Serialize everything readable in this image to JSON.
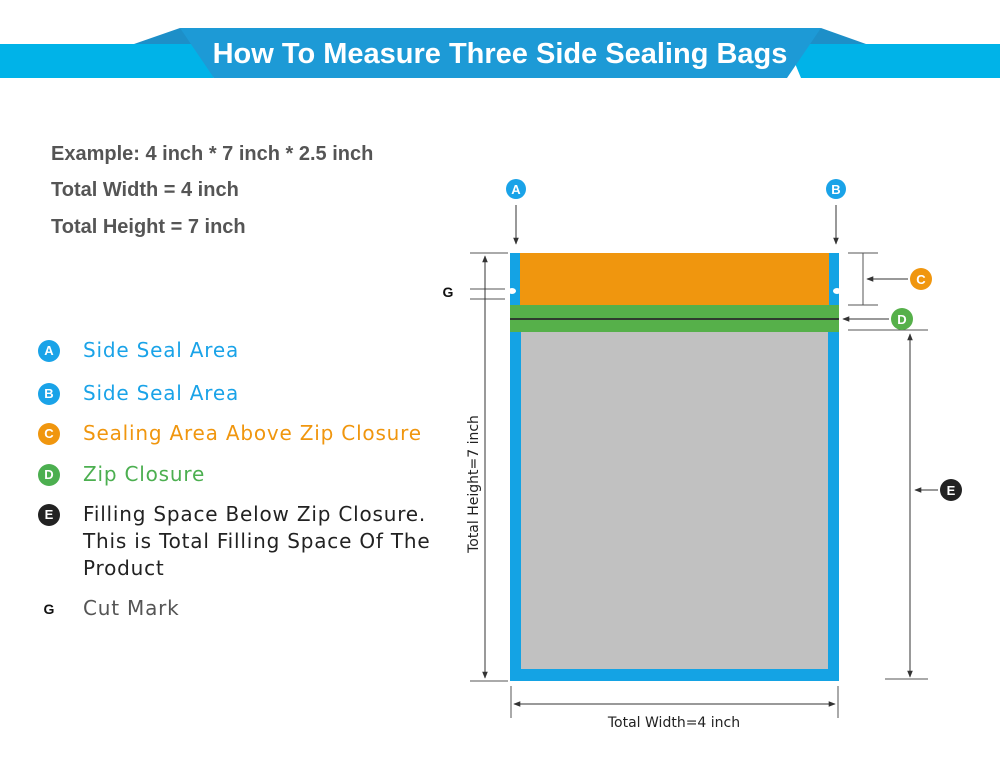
{
  "header": {
    "title": "How To Measure Three Side Sealing Bags"
  },
  "example": {
    "line1": "Example: 4 inch * 7 inch * 2.5 inch",
    "line2": "Total Width = 4 inch",
    "line3": "Total Height = 7 inch"
  },
  "legend": {
    "items": [
      {
        "badge": "A",
        "label": "Side Seal Area",
        "color": "#1aa3e8"
      },
      {
        "badge": "B",
        "label": "Side Seal Area",
        "color": "#1aa3e8"
      },
      {
        "badge": "C",
        "label": "Sealing Area Above Zip Closure",
        "color": "#f0960e"
      },
      {
        "badge": "D",
        "label": "Zip Closure",
        "color": "#4caf50"
      },
      {
        "badge": "E",
        "label": "Filling Space Below Zip Closure.",
        "label2": "This is Total Filling Space Of The",
        "label3": "Product",
        "color": "#222222"
      },
      {
        "badge": "G",
        "label": "Cut Mark",
        "color": "#555555"
      }
    ]
  },
  "diagram": {
    "markers": {
      "a": "A",
      "b": "B",
      "c": "C",
      "d": "D",
      "e": "E",
      "g": "G"
    },
    "height_label": "Total Height=7 inch",
    "width_label": "Total Width=4 inch"
  },
  "colors": {
    "banner_light": "#00b3e8",
    "banner_dark": "#1d9ad6",
    "side_seal": "#14a3e4",
    "top_seal": "#f0960e",
    "zip": "#56b04a",
    "filling": "#c1c1c1",
    "cut_mark_bg": "#ffffff"
  }
}
